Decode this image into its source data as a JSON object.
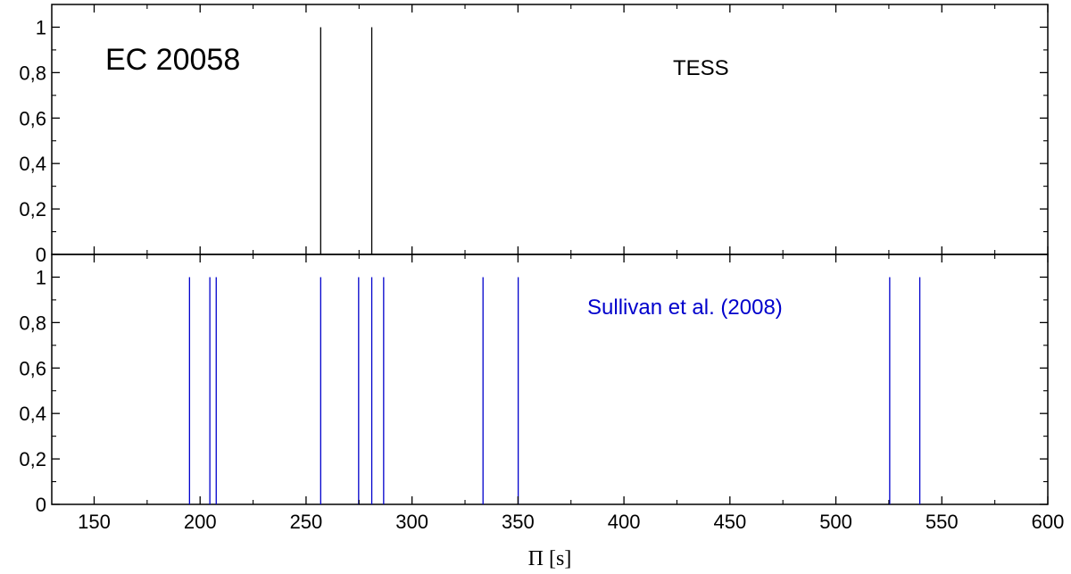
{
  "chart_data": {
    "type": "bar",
    "subtype": "stick-spectrum",
    "title": "EC 20058",
    "xlabel": "Π [s]",
    "xlim": [
      130,
      600
    ],
    "x_ticks": [
      150,
      200,
      250,
      300,
      350,
      400,
      450,
      500,
      550,
      600
    ],
    "x_tick_labels": [
      "150",
      "200",
      "250",
      "300",
      "350",
      "400",
      "450",
      "500",
      "550",
      "600"
    ],
    "grid": false,
    "panels": [
      {
        "label": "TESS",
        "label_color": "#000000",
        "color": "#000000",
        "ylim": [
          0,
          1.1
        ],
        "y_ticks": [
          0,
          0.2,
          0.4,
          0.6,
          0.8,
          1
        ],
        "y_tick_labels": [
          "0",
          "0,2",
          "0,4",
          "0,6",
          "0,8",
          "1"
        ],
        "periods": [
          256.9,
          281.0
        ],
        "amplitudes": [
          1,
          1
        ]
      },
      {
        "label": "Sullivan et al. (2008)",
        "label_color": "#0000cc",
        "color": "#0000cc",
        "ylim": [
          0,
          1.1
        ],
        "y_ticks": [
          0,
          0.2,
          0.4,
          0.6,
          0.8,
          1
        ],
        "y_tick_labels": [
          "0",
          "0,2",
          "0,4",
          "0,6",
          "0,8",
          "1"
        ],
        "periods": [
          195.0,
          204.6,
          207.6,
          256.9,
          274.8,
          281.0,
          286.6,
          333.5,
          350.1,
          525.4,
          539.6
        ],
        "amplitudes": [
          1,
          1,
          1,
          1,
          1,
          1,
          1,
          1,
          1,
          1,
          1
        ]
      }
    ]
  }
}
